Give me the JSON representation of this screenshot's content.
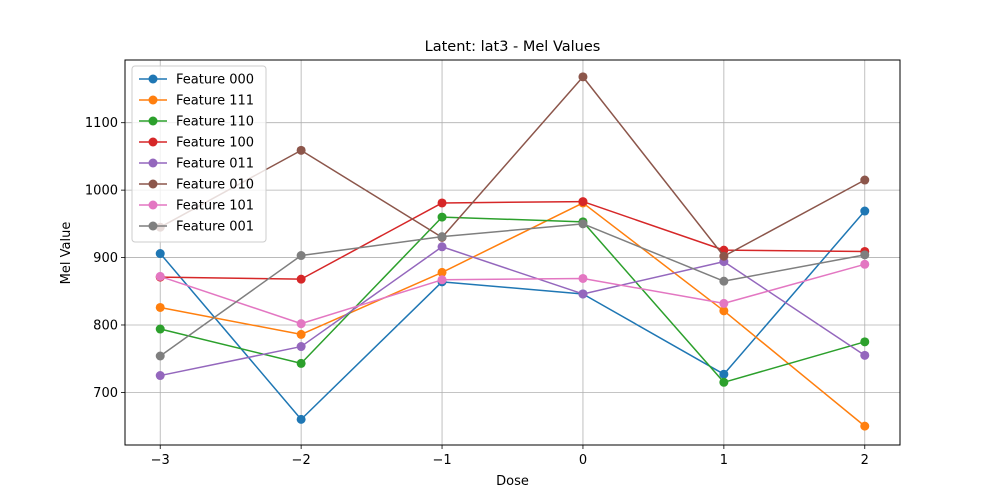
{
  "chart_data": {
    "type": "line",
    "title": "Latent: lat3 - Mel Values",
    "xlabel": "Dose",
    "ylabel": "Mel Value",
    "x": [
      -3,
      -2,
      -1,
      0,
      1,
      2
    ],
    "x_tick_labels": [
      "−3",
      "−2",
      "−1",
      "0",
      "1",
      "2"
    ],
    "y_ticks": [
      700,
      800,
      900,
      1000,
      1100
    ],
    "y_tick_labels": [
      "700",
      "800",
      "900",
      "1000",
      "1100"
    ],
    "xlim": [
      -3.25,
      2.25
    ],
    "ylim": [
      622,
      1193
    ],
    "grid": true,
    "legend_position": "top-left",
    "series": [
      {
        "name": "Feature 000",
        "color": "#1f77b4",
        "values": [
          906,
          660,
          864,
          846,
          727,
          969
        ]
      },
      {
        "name": "Feature 111",
        "color": "#ff7f0e",
        "values": [
          826,
          786,
          878,
          981,
          821,
          650
        ]
      },
      {
        "name": "Feature 110",
        "color": "#2ca02c",
        "values": [
          794,
          743,
          960,
          953,
          715,
          775
        ]
      },
      {
        "name": "Feature 100",
        "color": "#d62728",
        "values": [
          871,
          868,
          981,
          983,
          911,
          909
        ]
      },
      {
        "name": "Feature 011",
        "color": "#9467bd",
        "values": [
          725,
          768,
          916,
          846,
          894,
          755
        ]
      },
      {
        "name": "Feature 010",
        "color": "#8c564b",
        "values": [
          945,
          1059,
          930,
          1168,
          902,
          1015
        ]
      },
      {
        "name": "Feature 101",
        "color": "#e377c2",
        "values": [
          872,
          802,
          867,
          869,
          832,
          890
        ]
      },
      {
        "name": "Feature 001",
        "color": "#7f7f7f",
        "values": [
          754,
          903,
          931,
          950,
          865,
          904
        ]
      }
    ]
  }
}
